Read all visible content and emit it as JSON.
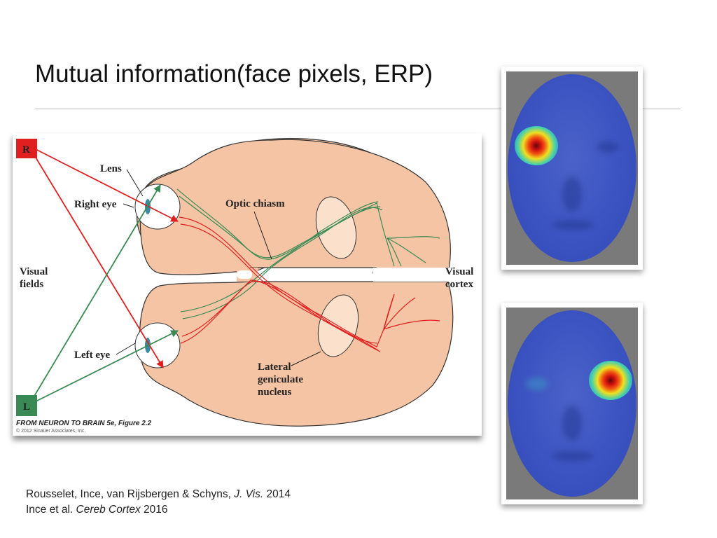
{
  "slide": {
    "title": "Mutual information(face pixels, ERP)",
    "figure": {
      "labels": {
        "r_box": "R",
        "l_box": "L",
        "lens": "Lens",
        "right_eye": "Right eye",
        "left_eye": "Left eye",
        "optic_chiasm": "Optic chiasm",
        "visual_fields_1": "Visual",
        "visual_fields_2": "fields",
        "visual_cortex_1": "Visual",
        "visual_cortex_2": "cortex",
        "lgn_1": "Lateral",
        "lgn_2": "geniculate",
        "lgn_3": "nucleus"
      },
      "credit": "FROM NEURON TO BRAIN 5e, Figure 2.2",
      "copyright": "© 2012 Sinauer Associates, Inc.",
      "colors": {
        "right": "#e02020",
        "left": "#3a8a55",
        "brain": "#f4c4a4"
      }
    },
    "citations": [
      {
        "prefix": "Rousselet, Ince, van Rijsbergen & Schyns, ",
        "journal": "J. Vis.",
        "suffix": " 2014"
      },
      {
        "prefix": "Ince et al. ",
        "journal": "Cereb Cortex",
        "suffix": " 2016"
      }
    ]
  }
}
